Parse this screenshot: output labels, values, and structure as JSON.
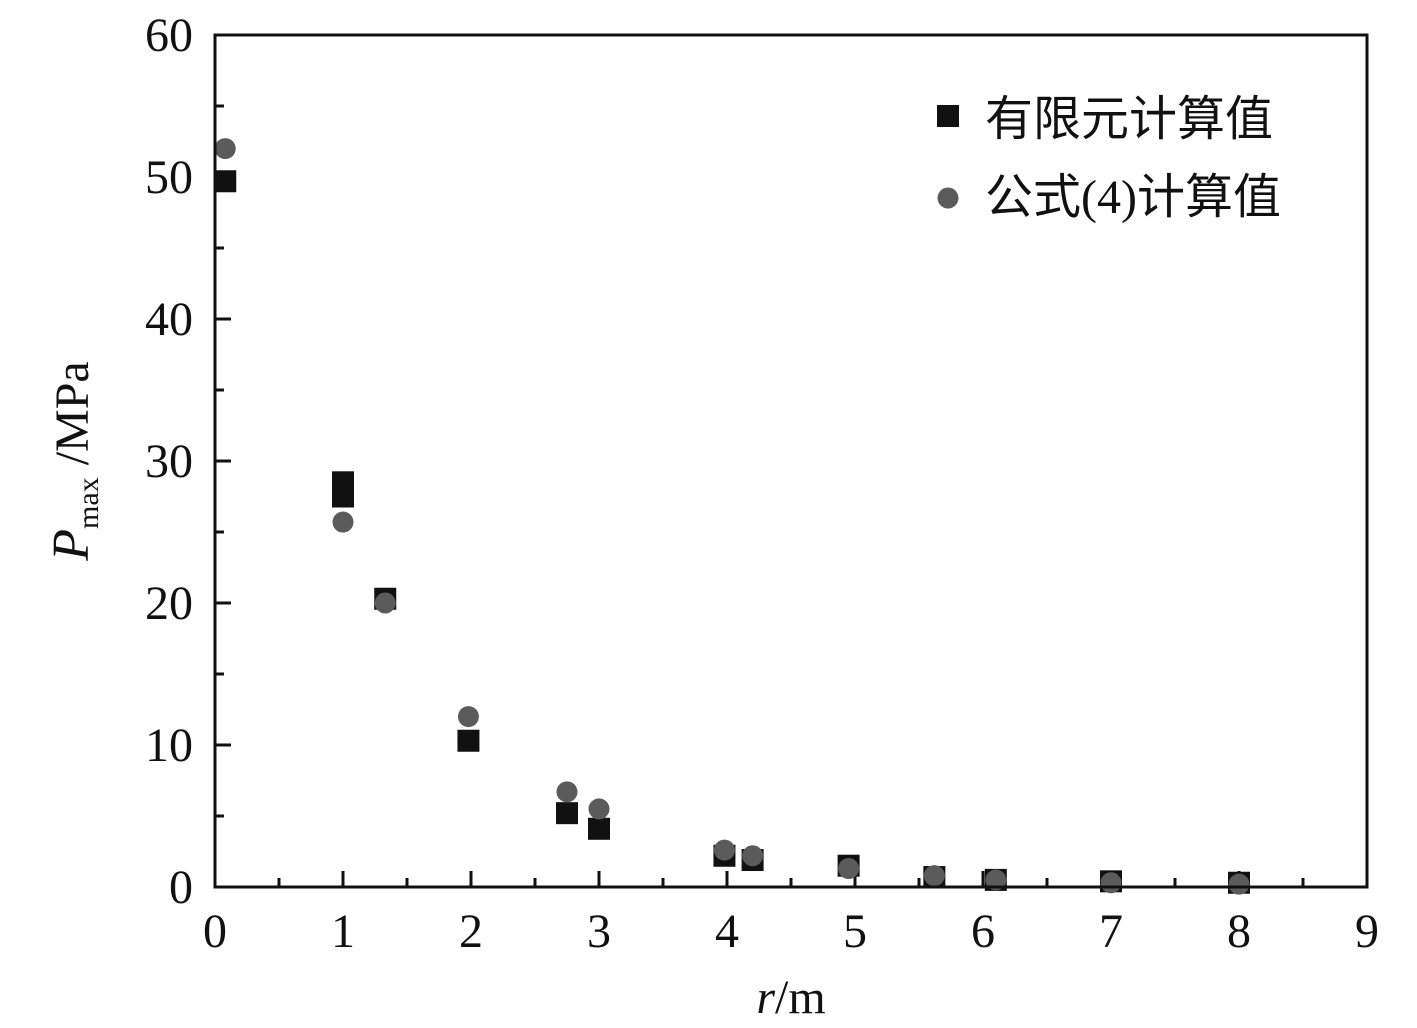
{
  "chart_data": {
    "type": "scatter",
    "xlim": [
      0,
      9
    ],
    "ylim": [
      0,
      60
    ],
    "x_ticks": [
      "0",
      "1",
      "2",
      "3",
      "4",
      "5",
      "6",
      "7",
      "8",
      "9"
    ],
    "y_ticks": [
      "0",
      "10",
      "20",
      "30",
      "40",
      "50",
      "60"
    ],
    "xlabel": {
      "var": "r",
      "unit": "/m"
    },
    "ylabel": {
      "var": "P",
      "sub": "max",
      "unit": " /MPa"
    },
    "legend_position": "top-right",
    "series": [
      {
        "name": "有限元计算值",
        "marker": "square",
        "color": "#111111",
        "points": [
          {
            "x": 0.08,
            "y": 49.7
          },
          {
            "x": 1.0,
            "y": 27.5
          },
          {
            "x": 1.0,
            "y": 28.5
          },
          {
            "x": 1.33,
            "y": 20.3
          },
          {
            "x": 1.98,
            "y": 10.3
          },
          {
            "x": 2.75,
            "y": 5.2
          },
          {
            "x": 3.0,
            "y": 4.1
          },
          {
            "x": 3.98,
            "y": 2.2
          },
          {
            "x": 4.2,
            "y": 1.9
          },
          {
            "x": 4.95,
            "y": 1.5
          },
          {
            "x": 5.62,
            "y": 0.7
          },
          {
            "x": 6.1,
            "y": 0.5
          },
          {
            "x": 7.0,
            "y": 0.4
          },
          {
            "x": 8.0,
            "y": 0.3
          }
        ]
      },
      {
        "name": "公式(4)计算值",
        "marker": "circle",
        "color": "#5b5b5b",
        "points": [
          {
            "x": 0.08,
            "y": 52.0
          },
          {
            "x": 1.0,
            "y": 25.7
          },
          {
            "x": 1.33,
            "y": 20.0
          },
          {
            "x": 1.98,
            "y": 12.0
          },
          {
            "x": 2.75,
            "y": 6.7
          },
          {
            "x": 3.0,
            "y": 5.5
          },
          {
            "x": 3.98,
            "y": 2.6
          },
          {
            "x": 4.2,
            "y": 2.2
          },
          {
            "x": 4.95,
            "y": 1.3
          },
          {
            "x": 5.62,
            "y": 0.8
          },
          {
            "x": 6.1,
            "y": 0.5
          },
          {
            "x": 7.0,
            "y": 0.3
          },
          {
            "x": 8.0,
            "y": 0.2
          }
        ]
      }
    ]
  }
}
